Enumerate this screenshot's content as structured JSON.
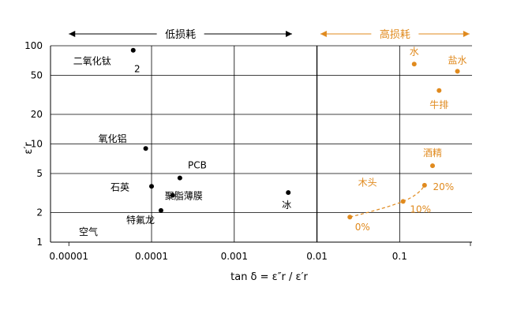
{
  "chart_data": {
    "type": "scatter",
    "x_scale": "log",
    "y_scale": "log",
    "xlim": [
      6e-06,
      0.75
    ],
    "ylim": [
      1,
      100
    ],
    "xticks": [
      {
        "value": 1e-05,
        "label": "0.00001"
      },
      {
        "value": 0.0001,
        "label": "0.0001"
      },
      {
        "value": 0.001,
        "label": "0.001"
      },
      {
        "value": 0.01,
        "label": "0.01"
      },
      {
        "value": 0.1,
        "label": "0.1"
      }
    ],
    "yticks": [
      {
        "value": 1,
        "label": "1"
      },
      {
        "value": 2,
        "label": "2"
      },
      {
        "value": 5,
        "label": "5"
      },
      {
        "value": 10,
        "label": "10"
      },
      {
        "value": 20,
        "label": "20"
      },
      {
        "value": 50,
        "label": "50"
      },
      {
        "value": 100,
        "label": "100"
      }
    ],
    "xlabel": "tan δ = ε″r / ε′r",
    "ylabel": "ε′r",
    "grid": true,
    "colors": {
      "low": "#000000",
      "high": "#e08a1e",
      "axis": "#000000"
    },
    "low_loss_arrow": {
      "label": "低损耗",
      "from": 1e-05,
      "to": 0.005
    },
    "high_loss_arrow": {
      "label": "高损耗",
      "from": 0.011,
      "to": 0.7
    },
    "series": [
      {
        "group": "low",
        "points": [
          {
            "label": "二氧化钛",
            "x": 6e-05,
            "y": 90
          },
          {
            "label": "氧化铝",
            "x": 8.5e-05,
            "y": 9
          },
          {
            "label": "PCB",
            "x": 0.00022,
            "y": 4.5
          },
          {
            "label": "石英",
            "x": 0.0001,
            "y": 3.7
          },
          {
            "label": "聚脂薄膜",
            "x": 0.00018,
            "y": 3
          },
          {
            "label": "特氟龙",
            "x": 0.00013,
            "y": 2.1
          },
          {
            "label": "冰",
            "x": 0.0045,
            "y": 3.2
          }
        ]
      },
      {
        "group": "high",
        "points": [
          {
            "label": "水",
            "x": 0.15,
            "y": 65
          },
          {
            "label": "盐水",
            "x": 0.5,
            "y": 55
          },
          {
            "label": "牛排",
            "x": 0.3,
            "y": 35
          },
          {
            "label": "酒精",
            "x": 0.25,
            "y": 6
          }
        ]
      },
      {
        "group": "high",
        "name": "木头",
        "curve": true,
        "points": [
          {
            "label": "0%",
            "x": 0.025,
            "y": 1.8
          },
          {
            "label": "10%",
            "x": 0.11,
            "y": 2.6
          },
          {
            "label": "20%",
            "x": 0.2,
            "y": 3.8
          }
        ]
      }
    ],
    "annotations": {
      "titanium_subscript": "2",
      "air": "空气"
    }
  }
}
